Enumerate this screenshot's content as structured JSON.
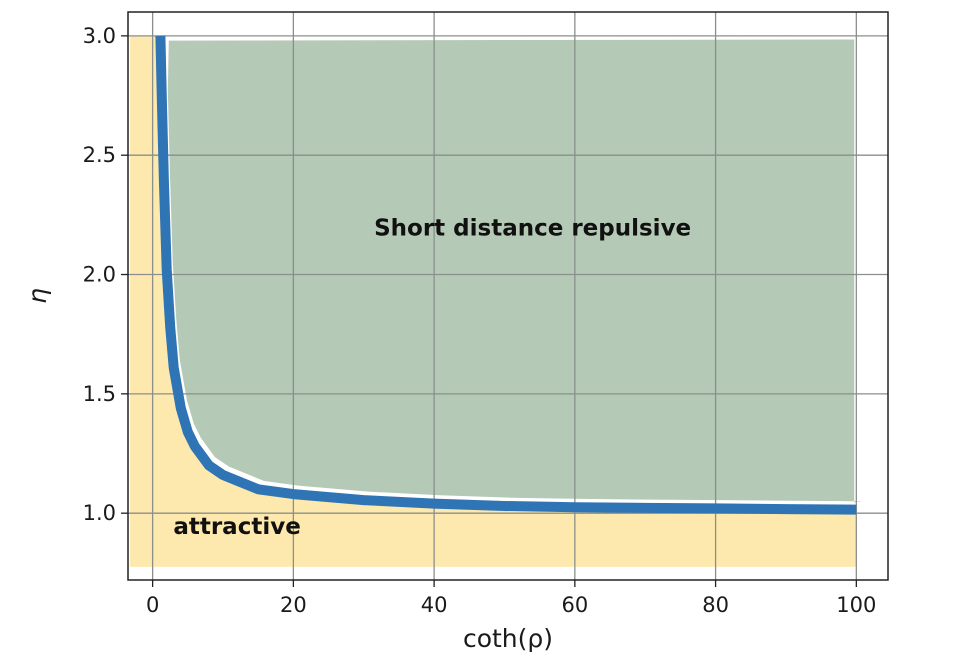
{
  "chart_data": {
    "type": "line",
    "title": "",
    "xlabel": "coth(ρ)",
    "ylabel": "η",
    "xlim": [
      -3.5,
      104.5
    ],
    "ylim": [
      0.72,
      3.1
    ],
    "x_ticks": [
      0,
      20,
      40,
      60,
      80,
      100
    ],
    "x_tick_labels": [
      "0",
      "20",
      "40",
      "60",
      "80",
      "100"
    ],
    "y_ticks": [
      1.0,
      1.5,
      2.0,
      2.5,
      3.0
    ],
    "y_tick_labels": [
      "1.0",
      "1.5",
      "2.0",
      "2.5",
      "3.0"
    ],
    "grid": true,
    "series": [
      {
        "x": [
          1.1,
          1.3,
          1.6,
          2,
          2.5,
          3,
          4,
          5,
          6,
          8,
          10,
          15,
          20,
          30,
          40,
          50,
          60,
          70,
          80,
          90,
          100
        ],
        "y": [
          3.0,
          2.74,
          2.39,
          2.02,
          1.78,
          1.61,
          1.44,
          1.34,
          1.28,
          1.2,
          1.16,
          1.1,
          1.08,
          1.055,
          1.04,
          1.03,
          1.025,
          1.022,
          1.02,
          1.017,
          1.015
        ],
        "color": "#2f74b5"
      }
    ],
    "regions": [
      {
        "label": "Short distance repulsive",
        "color": "#b5c9b7",
        "side": "above-curve"
      },
      {
        "label": "attractive",
        "color": "#fde9ad",
        "side": "below-curve"
      }
    ],
    "annotations": [
      {
        "text": "Short distance repulsive",
        "x": 54,
        "y": 2.19
      },
      {
        "text": "attractive",
        "x": 12,
        "y": 0.94
      }
    ]
  }
}
